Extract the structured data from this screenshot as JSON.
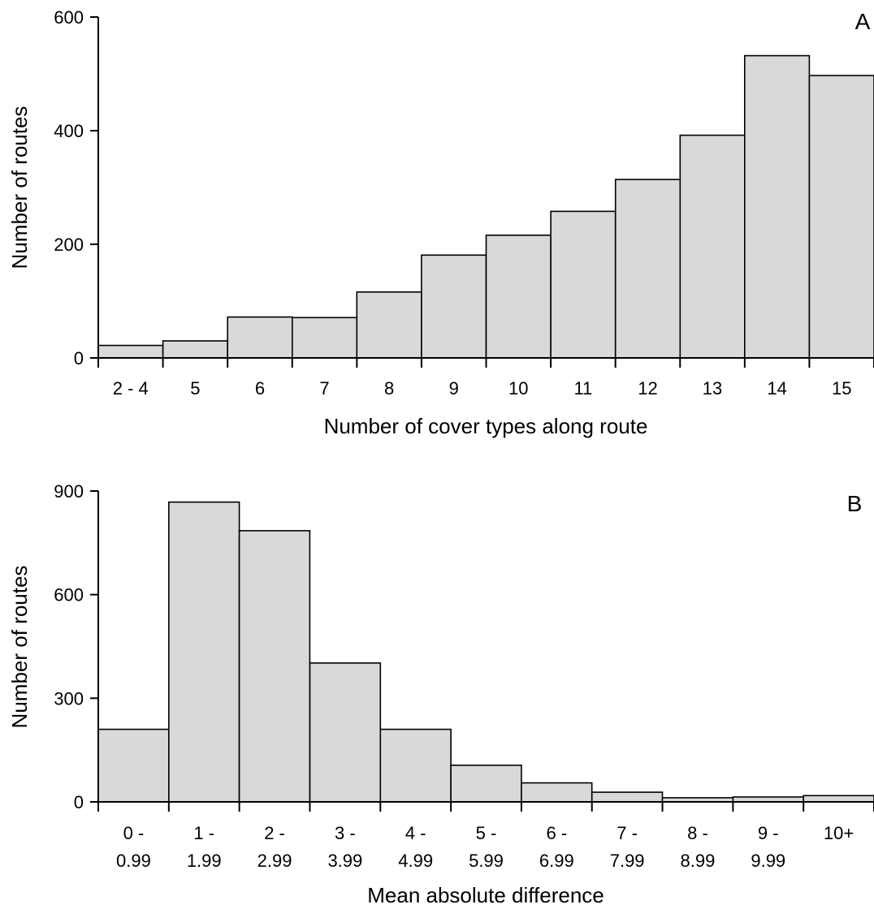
{
  "chart_data": [
    {
      "type": "bar",
      "panel_label": "A",
      "xlabel": "Number of cover types along route",
      "ylabel": "Number of routes",
      "ylim": [
        0,
        600
      ],
      "yticks": [
        0,
        200,
        400,
        600
      ],
      "categories": [
        [
          "2 - 4"
        ],
        [
          "5"
        ],
        [
          "6"
        ],
        [
          "7"
        ],
        [
          "8"
        ],
        [
          "9"
        ],
        [
          "10"
        ],
        [
          "11"
        ],
        [
          "12"
        ],
        [
          "13"
        ],
        [
          "14"
        ],
        [
          "15"
        ]
      ],
      "values": [
        22,
        30,
        72,
        71,
        116,
        181,
        216,
        258,
        314,
        392,
        532,
        497
      ],
      "bar_color": "#d9d9d9",
      "grid": false
    },
    {
      "type": "bar",
      "panel_label": "B",
      "xlabel": "Mean absolute difference",
      "ylabel": "Number of routes",
      "ylim": [
        0,
        900
      ],
      "yticks": [
        0,
        300,
        600,
        900
      ],
      "categories": [
        [
          "0 -",
          "0.99"
        ],
        [
          "1 -",
          "1.99"
        ],
        [
          "2 -",
          "2.99"
        ],
        [
          "3 -",
          "3.99"
        ],
        [
          "4 -",
          "4.99"
        ],
        [
          "5 -",
          "5.99"
        ],
        [
          "6 -",
          "6.99"
        ],
        [
          "7 -",
          "7.99"
        ],
        [
          "8 -",
          "8.99"
        ],
        [
          "9 -",
          "9.99"
        ],
        [
          "10+"
        ]
      ],
      "values": [
        210,
        868,
        785,
        402,
        210,
        106,
        55,
        28,
        12,
        14,
        18
      ],
      "bar_color": "#d9d9d9",
      "grid": false
    }
  ]
}
